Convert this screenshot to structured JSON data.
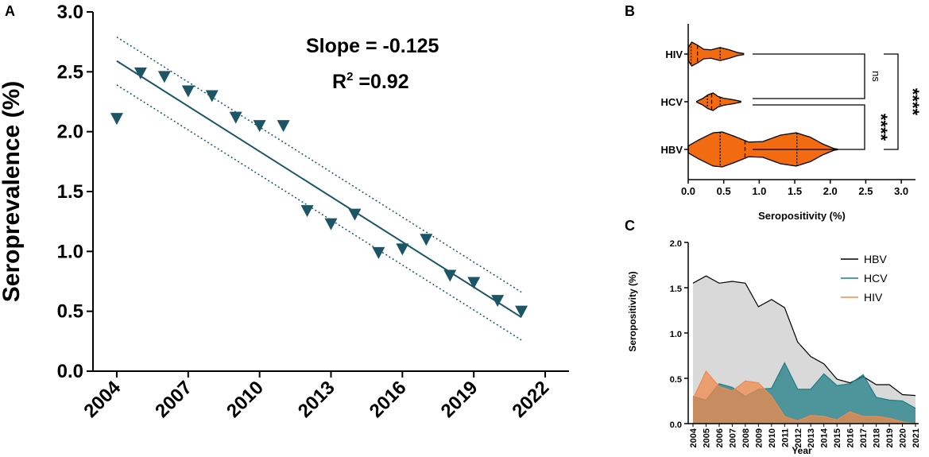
{
  "chart_data": [
    {
      "panel": "A",
      "type": "scatter",
      "title": "",
      "xlabel": "",
      "ylabel": "Seroprevalence (%)",
      "xlim": [
        2003,
        2023
      ],
      "ylim": [
        0,
        3.0
      ],
      "xticks": [
        "2004",
        "2007",
        "2010",
        "2013",
        "2016",
        "2019",
        "2022"
      ],
      "yticks": [
        "0.0",
        "0.5",
        "1.0",
        "1.5",
        "2.0",
        "2.5",
        "3.0"
      ],
      "x": [
        2004,
        2005,
        2006,
        2007,
        2008,
        2009,
        2010,
        2011,
        2012,
        2013,
        2014,
        2015,
        2016,
        2017,
        2018,
        2019,
        2020,
        2021
      ],
      "y": [
        2.11,
        2.49,
        2.46,
        2.34,
        2.3,
        2.12,
        2.05,
        2.05,
        1.34,
        1.23,
        1.31,
        0.99,
        1.02,
        1.1,
        0.8,
        0.74,
        0.59,
        0.5
      ],
      "marker": "triangle-down",
      "marker_color": "#1b5566",
      "regression": {
        "x0": 2004,
        "y0": 2.59,
        "x1": 2021,
        "y1": 0.45
      },
      "ci_upper": {
        "x0": 2004,
        "y0": 2.79,
        "x1": 2021,
        "y1": 0.66
      },
      "ci_lower": {
        "x0": 2004,
        "y0": 2.39,
        "x1": 2021,
        "y1": 0.26
      },
      "slope_text": "Slope = -0.125",
      "r2_prefix": "R",
      "r2_sup": "2",
      "r2_suffix": " =0.92"
    },
    {
      "panel": "B",
      "type": "violin",
      "xlabel": "Seropositivity (%)",
      "xlim": [
        0,
        3.2
      ],
      "xticks": [
        "0.0",
        "0.5",
        "1.0",
        "1.5",
        "2.0",
        "2.5",
        "3.0"
      ],
      "fill_color": "#f36b10",
      "categories": [
        "HIV",
        "HCV",
        "HBV"
      ],
      "violins": [
        {
          "name": "HIV",
          "min": 0.0,
          "max": 0.78,
          "q1": 0.04,
          "median": 0.13,
          "q3": 0.45,
          "profile": [
            [
              0.0,
              0.55
            ],
            [
              0.05,
              1.0
            ],
            [
              0.13,
              0.75
            ],
            [
              0.22,
              0.4
            ],
            [
              0.32,
              0.35
            ],
            [
              0.45,
              0.55
            ],
            [
              0.58,
              0.35
            ],
            [
              0.7,
              0.12
            ],
            [
              0.78,
              0.05
            ]
          ]
        },
        {
          "name": "HCV",
          "min": 0.12,
          "max": 0.74,
          "q1": 0.27,
          "median": 0.33,
          "q3": 0.45,
          "profile": [
            [
              0.12,
              0.05
            ],
            [
              0.2,
              0.35
            ],
            [
              0.28,
              0.8
            ],
            [
              0.35,
              1.0
            ],
            [
              0.42,
              0.6
            ],
            [
              0.5,
              0.4
            ],
            [
              0.62,
              0.25
            ],
            [
              0.74,
              0.05
            ]
          ]
        },
        {
          "name": "HBV",
          "min": 0.0,
          "max": 2.1,
          "q1": 0.45,
          "median": 0.8,
          "q3": 1.53,
          "profile": [
            [
              0.0,
              0.2
            ],
            [
              0.15,
              0.55
            ],
            [
              0.35,
              0.95
            ],
            [
              0.48,
              1.0
            ],
            [
              0.65,
              0.75
            ],
            [
              0.85,
              0.42
            ],
            [
              1.05,
              0.45
            ],
            [
              1.3,
              0.82
            ],
            [
              1.52,
              0.95
            ],
            [
              1.72,
              0.7
            ],
            [
              1.9,
              0.3
            ],
            [
              2.05,
              0.05
            ],
            [
              2.1,
              0.02
            ]
          ]
        }
      ],
      "comparisons": [
        {
          "pair": "HIV vs HCV",
          "label": "ns"
        },
        {
          "pair": "HCV vs HBV",
          "label": "****"
        },
        {
          "pair": "HIV vs HBV",
          "label": "****"
        }
      ]
    },
    {
      "panel": "C",
      "type": "area",
      "xlabel": "Year",
      "ylabel": "Seropositivity (%)",
      "ylim": [
        0,
        2.0
      ],
      "yticks": [
        "0.0",
        "0.5",
        "1.0",
        "1.5",
        "2.0"
      ],
      "categories": [
        "2004",
        "2005",
        "2006",
        "2007",
        "2008",
        "2009",
        "2010",
        "2011",
        "2012",
        "2013",
        "2014",
        "2015",
        "2016",
        "2017",
        "2018",
        "2019",
        "2020",
        "2021"
      ],
      "series": [
        {
          "name": "HBV",
          "color": "#d9d9d9",
          "line": "#000000",
          "values": [
            1.55,
            1.63,
            1.55,
            1.57,
            1.55,
            1.29,
            1.37,
            1.28,
            0.9,
            0.74,
            0.66,
            0.49,
            0.45,
            0.52,
            0.43,
            0.43,
            0.32,
            0.31
          ]
        },
        {
          "name": "HCV",
          "color": "#1f7d86",
          "line": "#1f7d86",
          "values": [
            0.3,
            0.26,
            0.44,
            0.4,
            0.3,
            0.38,
            0.39,
            0.67,
            0.38,
            0.38,
            0.55,
            0.42,
            0.44,
            0.54,
            0.29,
            0.26,
            0.25,
            0.17
          ]
        },
        {
          "name": "HIV",
          "color": "#f08a4b",
          "line": "#f08a4b",
          "values": [
            0.27,
            0.58,
            0.41,
            0.36,
            0.47,
            0.45,
            0.3,
            0.08,
            0.03,
            0.09,
            0.08,
            0.04,
            0.13,
            0.08,
            0.08,
            0.06,
            0.02,
            0.0
          ]
        }
      ],
      "legend": [
        "HBV",
        "HCV",
        "HIV"
      ],
      "legend_position": "top-right"
    }
  ]
}
